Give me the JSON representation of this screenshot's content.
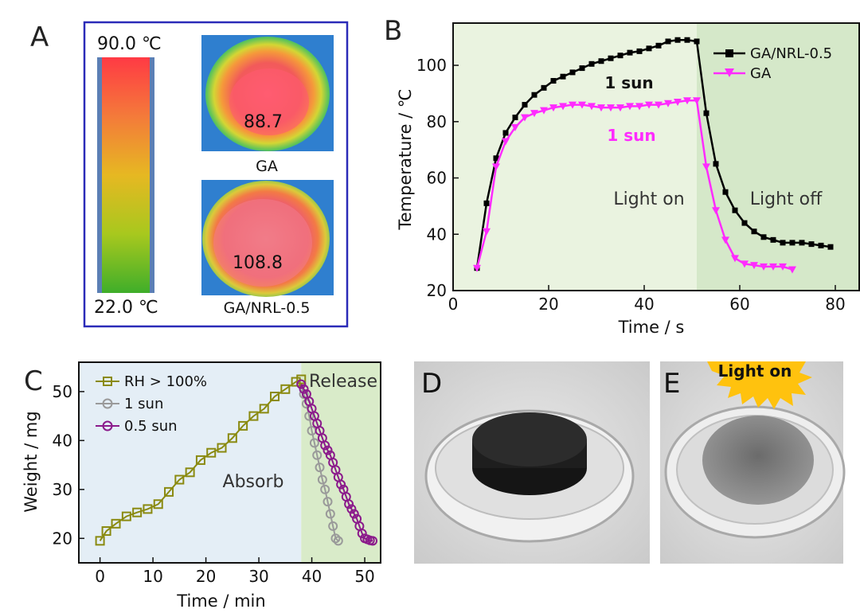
{
  "panels": {
    "A": {
      "letter": "A",
      "scale_max": "90.0 ℃",
      "scale_min": "22.0 ℃",
      "images": [
        {
          "caption": "GA",
          "value": "88.7"
        },
        {
          "caption": "GA/NRL-0.5",
          "value": "108.8"
        }
      ]
    },
    "D": {
      "letter": "D"
    },
    "E": {
      "letter": "E",
      "light_label": "Light on"
    }
  },
  "colors": {
    "frame_blue": "#2b2bb8",
    "black_series": "#000000",
    "magenta_series": "#ff2bff",
    "olive_series": "#8a8a10",
    "grey_series": "#9a9a9a",
    "purple_series": "#8b1a8b",
    "light_on_bg": "#eaf3e0",
    "light_off_bg": "#d5e8c9",
    "absorb_bg": "#e4eef6",
    "release_bg": "#d9ebc9"
  },
  "chart_data": [
    {
      "id": "B",
      "letter": "B",
      "type": "line",
      "xlabel": "Time / s",
      "ylabel": "Temperature / ℃",
      "xlim": [
        0,
        85
      ],
      "ylim": [
        20,
        115
      ],
      "xticks": [
        0,
        20,
        40,
        60,
        80
      ],
      "yticks": [
        20,
        40,
        60,
        80,
        100
      ],
      "split_x": 51,
      "region_labels": [
        "Light on",
        "Light off"
      ],
      "annotations": [
        "1 sun",
        "1 sun"
      ],
      "series": [
        {
          "name": "GA/NRL-0.5",
          "marker": "square",
          "x": [
            5,
            7,
            9,
            11,
            13,
            15,
            17,
            19,
            21,
            23,
            25,
            27,
            29,
            31,
            33,
            35,
            37,
            39,
            41,
            43,
            45,
            47,
            49,
            51,
            53,
            55,
            57,
            59,
            61,
            63,
            65,
            67,
            69,
            71,
            73,
            75,
            77,
            79
          ],
          "y": [
            28,
            51,
            67,
            76,
            81.5,
            86,
            89.5,
            92,
            94.5,
            96,
            97.5,
            99,
            100.5,
            101.5,
            102.5,
            103.5,
            104.5,
            105,
            106,
            107,
            108.5,
            109,
            109,
            108.5,
            83,
            65,
            55,
            48.5,
            44,
            41,
            39,
            38,
            37,
            37,
            37,
            36.5,
            36,
            35.5
          ]
        },
        {
          "name": "GA",
          "marker": "triangle-down",
          "x": [
            5,
            7,
            9,
            11,
            13,
            15,
            17,
            19,
            21,
            23,
            25,
            27,
            29,
            31,
            33,
            35,
            37,
            39,
            41,
            43,
            45,
            47,
            49,
            51,
            53,
            55,
            57,
            59,
            61,
            63,
            65,
            67,
            69,
            71
          ],
          "y": [
            28,
            41,
            64,
            73,
            78,
            81.5,
            83,
            84,
            85,
            85.5,
            86,
            86,
            85.5,
            85,
            85,
            85,
            85.5,
            85.5,
            86,
            86,
            86.5,
            87,
            87.5,
            87.5,
            64,
            48.5,
            38,
            31.5,
            29.5,
            29,
            28.5,
            28.5,
            28.5,
            27.5
          ]
        }
      ]
    },
    {
      "id": "C",
      "letter": "C",
      "type": "line",
      "xlabel": "Time / min",
      "ylabel": "Weight / mg",
      "xlim": [
        -4,
        53
      ],
      "ylim": [
        15,
        56
      ],
      "xticks": [
        0,
        10,
        20,
        30,
        40,
        50
      ],
      "yticks": [
        20,
        30,
        40,
        50
      ],
      "split_x": 38,
      "region_labels": [
        "Absorb",
        "Release"
      ],
      "series": [
        {
          "name": "RH > 100%",
          "marker": "square-open",
          "x": [
            0,
            1.2,
            3,
            5,
            7,
            9,
            11,
            13,
            15,
            17,
            19,
            21,
            23,
            25,
            27,
            29,
            31,
            33,
            35,
            37,
            38
          ],
          "y": [
            19.5,
            21.5,
            23,
            24.5,
            25.3,
            26,
            27,
            29.5,
            32,
            33.5,
            36,
            37.5,
            38.5,
            40.5,
            43,
            45,
            46.5,
            49,
            50.5,
            52,
            52.5
          ]
        },
        {
          "name": "1 sun",
          "marker": "circle-open",
          "x": [
            38,
            38.5,
            39,
            39.5,
            40,
            40.5,
            41,
            41.5,
            42,
            42.5,
            43,
            43.5,
            44,
            44.5,
            45
          ],
          "y": [
            51.5,
            49.5,
            47.5,
            45,
            42,
            39.5,
            37,
            34.5,
            32,
            30,
            27.5,
            25,
            22.5,
            20,
            19.5
          ]
        },
        {
          "name": "0.5 sun",
          "marker": "circle-open",
          "x": [
            38,
            38.5,
            39,
            39.5,
            40,
            40.5,
            41,
            41.5,
            42,
            42.5,
            43,
            43.5,
            44,
            44.5,
            45,
            45.5,
            46,
            46.5,
            47,
            47.5,
            48,
            48.5,
            49,
            49.5,
            50,
            50.5,
            51,
            51.5
          ],
          "y": [
            51.5,
            50.5,
            49.5,
            48,
            46.5,
            45,
            43.5,
            42,
            40.5,
            39,
            38,
            37,
            35.5,
            34,
            32.5,
            31,
            30,
            28.5,
            27,
            26,
            25,
            24,
            22.5,
            21,
            20,
            19.8,
            19.6,
            19.5
          ]
        }
      ]
    }
  ]
}
